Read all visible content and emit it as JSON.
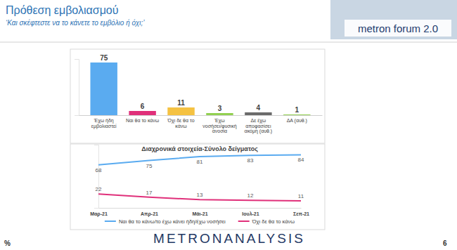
{
  "page": {
    "title": "Πρόθεση εμβολιασμού",
    "subtitle": "‘Και σκέφτεστε να το κάνετε το εμβόλιο ή όχι;’",
    "logo": "metron forum 2.0",
    "footer": "METRONANALYSIS",
    "unit": "%",
    "page_number": "6"
  },
  "chart_data": [
    {
      "type": "bar",
      "categories": [
        "Έχω ήδη εμβολιαστεί",
        "Ναι θα το κάνω",
        "Όχι δε θα το κάνω",
        "Έχω νοσήσει/φυσική ανοσία",
        "Δε έχω αποφασίσει ακόμη (αυθ.)",
        "ΔΑ (αυθ.)"
      ],
      "values": [
        75,
        6,
        11,
        3,
        4,
        1
      ],
      "colors": [
        "#5aabf0",
        "#e0307a",
        "#f5c242",
        "#92d050",
        "#6b6b6b",
        "#92d050"
      ],
      "ylim": [
        0,
        80
      ],
      "grid": false,
      "data_labels": true,
      "tick_labels": "x"
    },
    {
      "type": "line",
      "title": "Διαχρονικά στοιχεία-Σύνολο δείγματος",
      "categories": [
        "Μαρ-21",
        "Απρ-21",
        "Μάι-21",
        "Ιουλ-21",
        "Σεπ-21"
      ],
      "series": [
        {
          "name": "Ναι θα το κάνω/το έχω κάνει ήδη/έχω νοσήσει",
          "color": "#5aabf0",
          "values": [
            68,
            75,
            81,
            83,
            84
          ]
        },
        {
          "name": "Όχι δε θα το κάνω",
          "color": "#e0307a",
          "values": [
            22,
            17,
            13,
            12,
            11
          ]
        }
      ],
      "ylim": [
        0,
        100
      ],
      "grid": false,
      "legend": "bottom",
      "data_labels": true,
      "tick_labels": "x"
    }
  ]
}
